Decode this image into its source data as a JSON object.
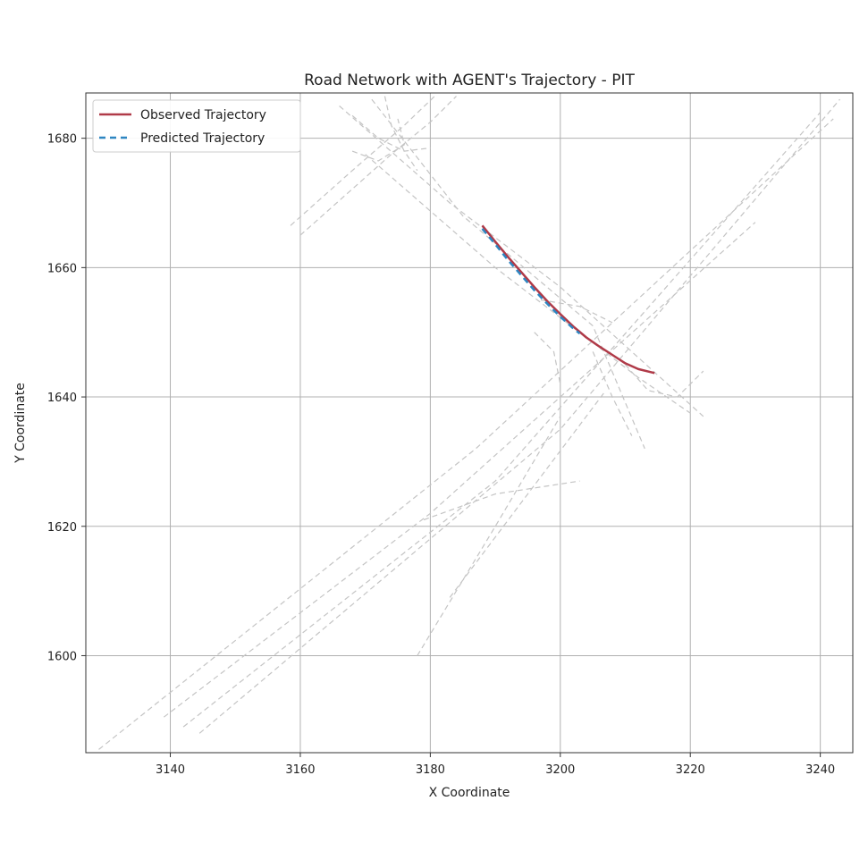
{
  "chart_data": {
    "type": "line",
    "title": "Road Network with AGENT's Trajectory - PIT",
    "xlabel": "X Coordinate",
    "ylabel": "Y Coordinate",
    "xlim": [
      3127,
      3245
    ],
    "ylim": [
      1585,
      1687
    ],
    "xticks": [
      3140,
      3160,
      3180,
      3200,
      3220,
      3240
    ],
    "yticks": [
      1600,
      1620,
      1640,
      1660,
      1680
    ],
    "grid": true,
    "legend_position": "top-left",
    "series": [
      {
        "name": "Observed Trajectory",
        "color": "#b03a48",
        "style": "solid",
        "points": [
          [
            3188.0,
            1666.5
          ],
          [
            3190.0,
            1664.0
          ],
          [
            3192.0,
            1661.6
          ],
          [
            3194.0,
            1659.3
          ],
          [
            3196.0,
            1657.0
          ],
          [
            3198.0,
            1654.8
          ],
          [
            3200.0,
            1652.8
          ],
          [
            3202.0,
            1650.9
          ],
          [
            3204.0,
            1649.2
          ],
          [
            3206.0,
            1647.8
          ],
          [
            3208.0,
            1646.5
          ],
          [
            3210.0,
            1645.2
          ],
          [
            3212.0,
            1644.3
          ],
          [
            3214.5,
            1643.7
          ]
        ]
      },
      {
        "name": "Predicted Trajectory",
        "color": "#2e86c1",
        "style": "dashed",
        "points": [
          [
            3188.0,
            1666.0
          ],
          [
            3190.0,
            1663.6
          ],
          [
            3192.0,
            1661.1
          ],
          [
            3194.0,
            1658.8
          ],
          [
            3196.0,
            1656.5
          ],
          [
            3198.0,
            1654.4
          ],
          [
            3200.0,
            1652.4
          ],
          [
            3202.0,
            1650.6
          ],
          [
            3203.0,
            1649.8
          ]
        ]
      }
    ],
    "road_lanes": [
      [
        [
          3129.0,
          1585.5
        ],
        [
          3187.0,
          1632.0
        ],
        [
          3242.0,
          1683.0
        ]
      ],
      [
        [
          3139.0,
          1590.5
        ],
        [
          3180.0,
          1622.0
        ],
        [
          3230.0,
          1667.0
        ]
      ],
      [
        [
          3142.0,
          1589.0
        ],
        [
          3190.0,
          1627.0
        ],
        [
          3240.0,
          1684.0
        ]
      ],
      [
        [
          3144.5,
          1588.0
        ],
        [
          3200.0,
          1635.0
        ],
        [
          3243.0,
          1686.0
        ]
      ],
      [
        [
          3160.0,
          1665.0
        ],
        [
          3174.0,
          1677.5
        ],
        [
          3180.0,
          1682.5
        ],
        [
          3184.0,
          1686.5
        ]
      ],
      [
        [
          3158.5,
          1666.5
        ],
        [
          3168.0,
          1675.0
        ],
        [
          3176.0,
          1682.0
        ],
        [
          3181.0,
          1686.8
        ]
      ],
      [
        [
          3166.0,
          1685.0
        ],
        [
          3183.0,
          1670.0
        ],
        [
          3200.0,
          1657.0
        ],
        [
          3222.0,
          1637.0
        ]
      ],
      [
        [
          3171.0,
          1686.0
        ],
        [
          3185.0,
          1668.0
        ],
        [
          3205.0,
          1651.0
        ],
        [
          3213.0,
          1632.0
        ]
      ],
      [
        [
          3170.0,
          1677.5
        ],
        [
          3190.0,
          1660.0
        ],
        [
          3212.0,
          1643.0
        ],
        [
          3220.0,
          1637.5
        ]
      ],
      [
        [
          3168.0,
          1678.0
        ],
        [
          3172.0,
          1676.5
        ],
        [
          3176.0,
          1679.0
        ],
        [
          3175.0,
          1683.0
        ]
      ],
      [
        [
          3168.0,
          1683.5
        ],
        [
          3172.0,
          1680.0
        ],
        [
          3176.0,
          1678.0
        ],
        [
          3180.0,
          1678.5
        ]
      ],
      [
        [
          3173.0,
          1686.5
        ],
        [
          3174.0,
          1682.0
        ],
        [
          3176.0,
          1678.0
        ],
        [
          3178.0,
          1675.0
        ]
      ],
      [
        [
          3205.0,
          1647.0
        ],
        [
          3208.0,
          1640.0
        ],
        [
          3211.0,
          1634.0
        ]
      ],
      [
        [
          3210.0,
          1645.0
        ],
        [
          3213.5,
          1641.0
        ],
        [
          3218.0,
          1640.0
        ],
        [
          3222.0,
          1644.0
        ]
      ],
      [
        [
          3197.0,
          1655.0
        ],
        [
          3203.0,
          1654.0
        ],
        [
          3208.0,
          1651.5
        ]
      ],
      [
        [
          3196.0,
          1650.0
        ],
        [
          3199.0,
          1647.0
        ],
        [
          3200.0,
          1642.0
        ]
      ],
      [
        [
          3179.0,
          1621.0
        ],
        [
          3190.0,
          1625.0
        ],
        [
          3203.0,
          1627.0
        ]
      ],
      [
        [
          3178.0,
          1600.0
        ],
        [
          3190.0,
          1620.0
        ],
        [
          3200.0,
          1637.0
        ]
      ],
      [
        [
          3183.0,
          1609.0
        ],
        [
          3195.0,
          1625.0
        ],
        [
          3207.0,
          1641.0
        ]
      ]
    ]
  }
}
